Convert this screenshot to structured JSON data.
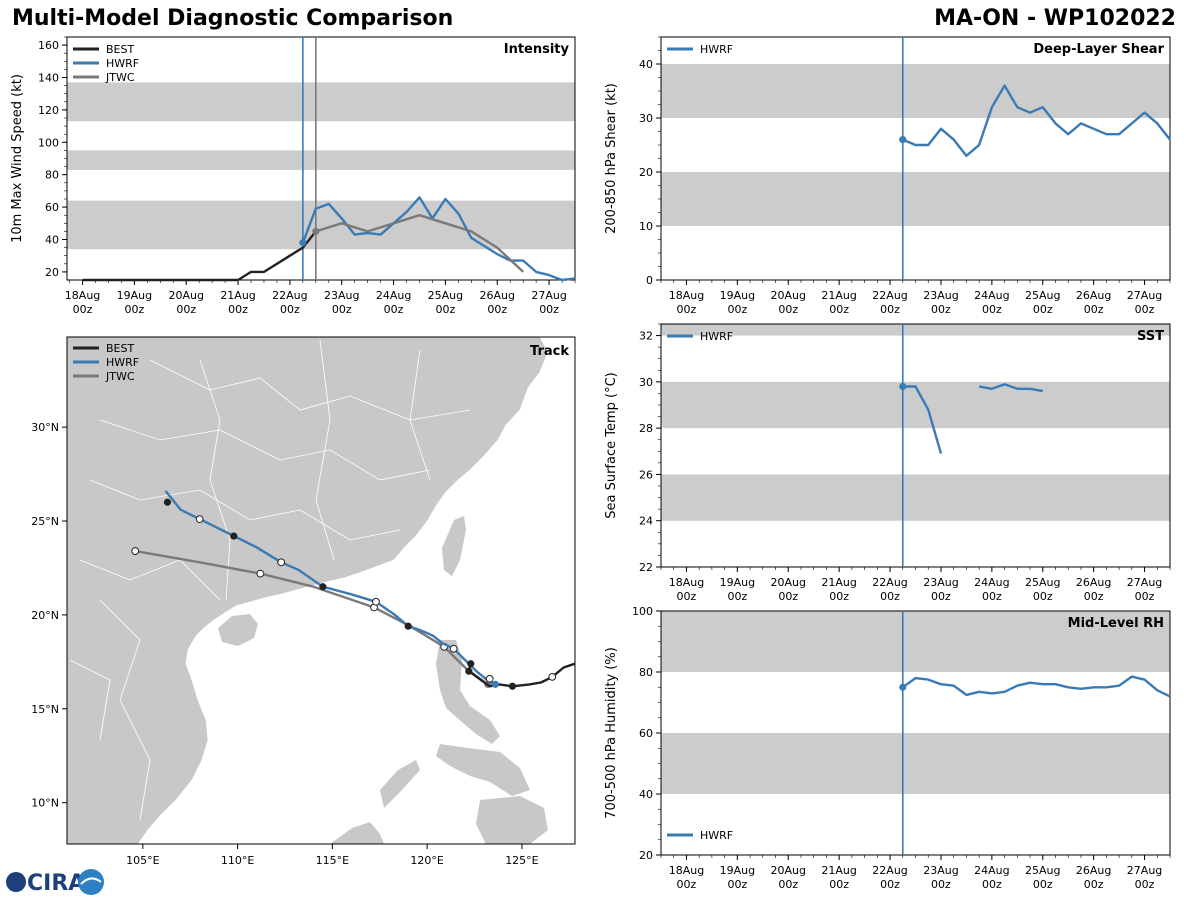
{
  "header": {
    "title": "Multi-Model Diagnostic Comparison",
    "storm": "MA-ON - WP102022"
  },
  "colors": {
    "best": "#222222",
    "hwrf": "#3a7bb5",
    "jtwc": "#7a7a7a",
    "band": "#cccccc",
    "land": "#c8c8c8"
  },
  "time_ticks": [
    "18Aug\n00z",
    "19Aug\n00z",
    "20Aug\n00z",
    "21Aug\n00z",
    "22Aug\n00z",
    "23Aug\n00z",
    "24Aug\n00z",
    "25Aug\n00z",
    "26Aug\n00z",
    "27Aug\n00z"
  ],
  "logo_text": "CIRA",
  "chart_data": [
    {
      "id": "intensity",
      "type": "line",
      "title": "Intensity",
      "ylabel": "10m Max Wind Speed (kt)",
      "xlim": [
        -0.3,
        9.5
      ],
      "ylim": [
        15,
        165
      ],
      "yticks": [
        20,
        40,
        60,
        80,
        100,
        120,
        140,
        160
      ],
      "bands": [
        [
          34,
          64
        ],
        [
          83,
          95
        ],
        [
          113,
          137
        ]
      ],
      "vlines": [
        {
          "x": 4.25,
          "color": "hwrf"
        },
        {
          "x": 4.5,
          "color": "jtwc"
        }
      ],
      "legend": [
        "BEST",
        "HWRF",
        "JTWC"
      ],
      "series": [
        {
          "name": "BEST",
          "color": "best",
          "x": [
            0,
            0.5,
            1,
            1.5,
            2,
            2.5,
            3,
            3.25,
            3.5,
            4,
            4.25,
            4.5
          ],
          "y": [
            15,
            15,
            15,
            15,
            15,
            15,
            15,
            20,
            20,
            30,
            35,
            45
          ]
        },
        {
          "name": "HWRF",
          "color": "hwrf",
          "x": [
            4.25,
            4.5,
            4.75,
            5,
            5.25,
            5.5,
            5.75,
            6,
            6.25,
            6.5,
            6.75,
            7,
            7.25,
            7.5,
            7.75,
            8,
            8.25,
            8.5,
            8.75,
            9,
            9.25,
            9.5
          ],
          "y": [
            38,
            59,
            62,
            53,
            43,
            44,
            43,
            50,
            57,
            66,
            53,
            65,
            56,
            41,
            36,
            31,
            27,
            27,
            20,
            18,
            15,
            16
          ],
          "marker_first": true
        },
        {
          "name": "JTWC",
          "color": "jtwc",
          "x": [
            4.5,
            5,
            5.5,
            6,
            6.5,
            7,
            7.5,
            8,
            8.5
          ],
          "y": [
            45,
            50,
            45,
            50,
            55,
            50,
            45,
            35,
            20
          ],
          "marker_first": true
        }
      ]
    },
    {
      "id": "shear",
      "type": "line",
      "title": "Deep-Layer Shear",
      "ylabel": "200-850 hPa Shear (kt)",
      "xlim": [
        -0.5,
        9.5
      ],
      "ylim": [
        0,
        45
      ],
      "yticks": [
        0,
        10,
        20,
        30,
        40
      ],
      "bands": [
        [
          10,
          20
        ],
        [
          30,
          40
        ]
      ],
      "vlines": [
        {
          "x": 4.25,
          "color": "hwrf"
        }
      ],
      "legend": [
        "HWRF"
      ],
      "series": [
        {
          "name": "HWRF",
          "color": "hwrf",
          "x": [
            4.25,
            4.5,
            4.75,
            5,
            5.25,
            5.5,
            5.75,
            6,
            6.25,
            6.5,
            6.75,
            7,
            7.25,
            7.5,
            7.75,
            8,
            8.25,
            8.5,
            8.75,
            9,
            9.25,
            9.5
          ],
          "y": [
            26,
            25,
            25,
            28,
            26,
            23,
            25,
            32,
            36,
            32,
            31,
            32,
            29,
            27,
            29,
            28,
            27,
            27,
            29,
            31,
            29,
            26
          ],
          "marker_first": true
        }
      ]
    },
    {
      "id": "sst",
      "type": "line",
      "title": "SST",
      "ylabel": "Sea Surface Temp (°C)",
      "xlim": [
        -0.5,
        9.5
      ],
      "ylim": [
        22,
        32.5
      ],
      "yticks": [
        22,
        24,
        26,
        28,
        30,
        32
      ],
      "bands": [
        [
          24,
          26
        ],
        [
          28,
          30
        ],
        [
          32,
          33
        ]
      ],
      "vlines": [
        {
          "x": 4.25,
          "color": "hwrf"
        }
      ],
      "legend": [
        "HWRF"
      ],
      "series": [
        {
          "name": "HWRF",
          "color": "hwrf",
          "x": [
            4.25,
            4.5,
            4.75,
            5
          ],
          "y": [
            29.8,
            29.8,
            28.8,
            26.9
          ],
          "marker_first": true
        },
        {
          "name": "HWRF-2",
          "color": "hwrf",
          "x": [
            5.75,
            6,
            6.25,
            6.5,
            6.75,
            7
          ],
          "y": [
            29.8,
            29.7,
            29.9,
            29.7,
            29.7,
            29.6
          ]
        }
      ]
    },
    {
      "id": "rh",
      "type": "line",
      "title": "Mid-Level RH",
      "ylabel": "700-500 hPa Humidity (%)",
      "xlim": [
        -0.5,
        9.5
      ],
      "ylim": [
        20,
        100
      ],
      "yticks": [
        20,
        40,
        60,
        80,
        100
      ],
      "bands": [
        [
          40,
          60
        ],
        [
          80,
          100
        ]
      ],
      "vlines": [
        {
          "x": 4.25,
          "color": "hwrf"
        }
      ],
      "legend": [
        "HWRF"
      ],
      "series": [
        {
          "name": "HWRF",
          "color": "hwrf",
          "x": [
            4.25,
            4.5,
            4.75,
            5,
            5.25,
            5.5,
            5.75,
            6,
            6.25,
            6.5,
            6.75,
            7,
            7.25,
            7.5,
            7.75,
            8,
            8.25,
            8.5,
            8.75,
            9,
            9.25,
            9.5
          ],
          "y": [
            75,
            78,
            77.5,
            76,
            75.5,
            72.5,
            73.5,
            73,
            73.5,
            75.5,
            76.5,
            76,
            76,
            75,
            74.5,
            75,
            75,
            75.5,
            78.5,
            77.5,
            74,
            72
          ],
          "marker_first": true
        }
      ]
    },
    {
      "id": "track",
      "type": "line",
      "title": "Track",
      "xlim": [
        101,
        127.8
      ],
      "ylim": [
        7.8,
        34.8
      ],
      "xticks": [
        105,
        110,
        115,
        120,
        125
      ],
      "xticklabels": [
        "105°E",
        "110°E",
        "115°E",
        "120°E",
        "125°E"
      ],
      "yticks": [
        10,
        15,
        20,
        25,
        30
      ],
      "yticklabels": [
        "10°N",
        "15°N",
        "20°N",
        "25°N",
        "30°N"
      ],
      "legend": [
        "BEST",
        "HWRF",
        "JTWC"
      ],
      "series": [
        {
          "name": "BEST",
          "color": "best",
          "lon": [
            127.8,
            127.2,
            126.6,
            126,
            125.4,
            124.5,
            123.8,
            123.3,
            122.2,
            122.3
          ],
          "lat": [
            17.4,
            17.2,
            16.7,
            16.4,
            16.3,
            16.2,
            16.3,
            16.2,
            17.0,
            17.4
          ],
          "markers_filled": [
            [
              122.3,
              17.4
            ],
            [
              122.2,
              17.0
            ],
            [
              124.5,
              16.2
            ]
          ],
          "markers_open": [
            [
              126.6,
              16.7
            ]
          ]
        },
        {
          "name": "HWRF",
          "color": "hwrf",
          "lon": [
            123.6,
            123.2,
            122.6,
            122.0,
            121.4,
            120.8,
            120.3,
            119.6,
            119.0,
            118.3,
            117.3,
            116.0,
            114.5,
            113.2,
            112.3,
            111.0,
            109.8,
            108.0,
            107.0,
            106.2
          ],
          "lat": [
            16.3,
            16.5,
            17.0,
            17.6,
            18.2,
            18.5,
            18.9,
            19.2,
            19.4,
            20.0,
            20.7,
            21.1,
            21.5,
            22.4,
            22.8,
            23.6,
            24.2,
            25.1,
            25.6,
            26.6
          ],
          "markers_filled": [
            [
              119.0,
              19.4
            ],
            [
              114.5,
              21.5
            ],
            [
              109.8,
              24.2
            ],
            [
              106.3,
              26.0
            ]
          ],
          "markers_open": [
            [
              123.3,
              16.6
            ],
            [
              121.4,
              18.2
            ],
            [
              117.3,
              20.7
            ],
            [
              112.3,
              22.8
            ],
            [
              108.0,
              25.1
            ]
          ]
        },
        {
          "name": "JTWC",
          "color": "jtwc",
          "lon": [
            123.2,
            122.1,
            120.9,
            119.1,
            117.2,
            114.0,
            111.2,
            108.0,
            104.6
          ],
          "lat": [
            16.3,
            17.1,
            18.3,
            19.4,
            20.4,
            21.5,
            22.2,
            22.8,
            23.4
          ],
          "markers_filled": [
            [
              123.2,
              16.3
            ]
          ],
          "markers_open": [
            [
              120.9,
              18.3
            ],
            [
              117.2,
              20.4
            ],
            [
              111.2,
              22.2
            ],
            [
              104.6,
              23.4
            ]
          ]
        }
      ]
    }
  ]
}
